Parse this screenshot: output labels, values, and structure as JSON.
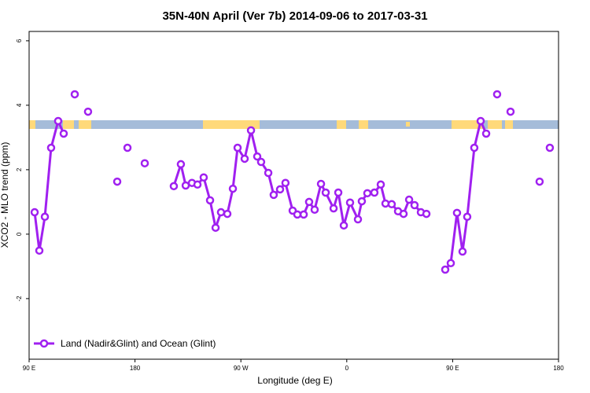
{
  "chart_data": {
    "type": "line",
    "title": "35N-40N April (Ver 7b)   2014-09-06 to 2017-03-31",
    "x_label": "Longitude (deg E)",
    "y_label": "XCO2 - MLO trend (ppm)",
    "xlim": [
      90,
      540
    ],
    "ylim": [
      -3.88,
      6.29
    ],
    "xticks": [
      {
        "value": 90,
        "label": "90 E"
      },
      180,
      {
        "value": 270,
        "label": "90 W"
      },
      {
        "value": 360,
        "label": "0"
      },
      {
        "value": 450,
        "label": "90 E"
      },
      {
        "value": 540,
        "label": "180"
      }
    ],
    "yticks": [
      -2,
      0,
      2,
      4,
      6
    ],
    "legend": "bottomleft",
    "x": [
      94.7,
      98.7,
      103.4,
      108.7,
      114.7,
      119.4,
      null,
      128.8,
      null,
      140.1,
      null,
      164.9,
      null,
      173.6,
      null,
      188.3,
      null,
      213.0,
      219.0,
      223.1,
      228.4,
      233.1,
      238.4,
      243.8,
      248.5,
      253.1,
      258.5,
      263.2,
      267.2,
      273.2,
      278.6,
      283.9,
      287.2,
      293.3,
      297.9,
      303.3,
      307.9,
      314.0,
      318.0,
      323.4,
      328.0,
      332.7,
      338.1,
      342.1,
      348.8,
      352.8,
      357.5,
      362.8,
      369.5,
      372.8,
      377.5,
      383.5,
      388.9,
      392.9,
      398.2,
      403.6,
      408.3,
      413.0,
      417.6,
      423.0,
      427.7,
      null,
      443.7,
      448.4,
      453.7,
      458.4,
      462.4,
      468.4,
      473.8,
      478.5,
      null,
      487.8,
      null,
      499.2,
      null,
      523.9,
      null,
      532.6
    ],
    "series": [
      {
        "name": "Land (Nadir&Glint) and Ocean (Glint)",
        "color": "#a020f0",
        "values": [
          0.68,
          -0.51,
          0.54,
          2.68,
          3.51,
          3.12,
          null,
          4.34,
          null,
          3.8,
          null,
          1.63,
          null,
          2.68,
          null,
          2.2,
          null,
          1.49,
          2.17,
          1.51,
          1.59,
          1.54,
          1.76,
          1.05,
          0.2,
          0.68,
          0.63,
          1.41,
          2.68,
          2.34,
          3.22,
          2.41,
          2.24,
          1.9,
          1.22,
          1.39,
          1.59,
          0.73,
          0.61,
          0.61,
          1.0,
          0.76,
          1.56,
          1.29,
          0.8,
          1.29,
          0.27,
          0.98,
          0.46,
          1.02,
          1.27,
          1.29,
          1.54,
          0.95,
          0.93,
          0.71,
          0.63,
          1.07,
          0.9,
          0.68,
          0.63,
          null,
          -1.1,
          -0.9,
          0.66,
          -0.54,
          0.54,
          2.68,
          3.51,
          3.12,
          null,
          4.34,
          null,
          3.8,
          null,
          1.63,
          null,
          2.68
        ]
      }
    ]
  }
}
